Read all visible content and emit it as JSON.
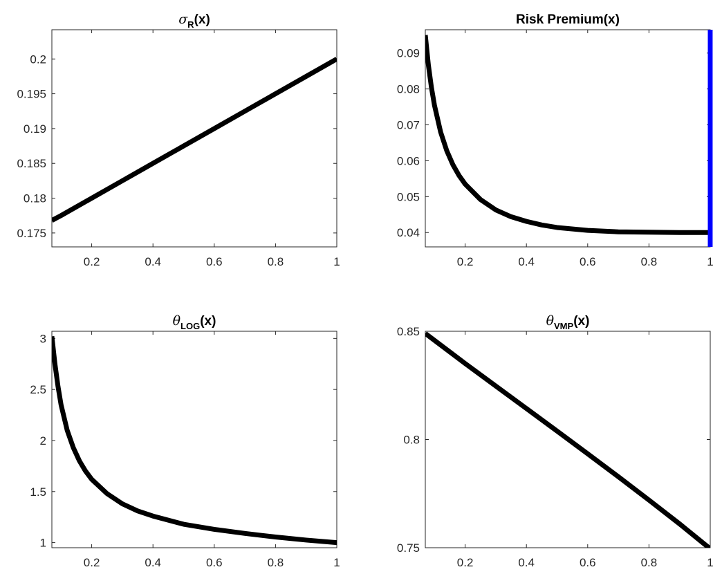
{
  "chart_data": [
    {
      "type": "line",
      "title": {
        "symbol": "σ",
        "subscript": "R",
        "suffix": "(x)"
      },
      "xlim": [
        0.07,
        1.0
      ],
      "ylim": [
        0.173,
        0.2042
      ],
      "xticks": [
        0.2,
        0.4,
        0.6,
        0.8,
        1.0
      ],
      "xtick_labels": [
        "0.2",
        "0.4",
        "0.6",
        "0.8",
        "1"
      ],
      "yticks": [
        0.175,
        0.18,
        0.185,
        0.19,
        0.195,
        0.2
      ],
      "ytick_labels": [
        "0.175",
        "0.18",
        "0.185",
        "0.19",
        "0.195",
        "0.2"
      ],
      "grid": false,
      "series": [
        {
          "color": "#000000",
          "x": [
            0.07,
            0.1,
            0.2,
            0.3,
            0.4,
            0.5,
            0.6,
            0.7,
            0.8,
            0.9,
            1.0
          ],
          "y": [
            0.1768,
            0.1775,
            0.18,
            0.1825,
            0.185,
            0.1875,
            0.19,
            0.1925,
            0.195,
            0.1975,
            0.2
          ]
        }
      ]
    },
    {
      "type": "line",
      "title": {
        "text": "Risk Premium(x)"
      },
      "xlim": [
        0.07,
        1.0
      ],
      "ylim": [
        0.036,
        0.0965
      ],
      "xticks": [
        0.2,
        0.4,
        0.6,
        0.8,
        1.0
      ],
      "xtick_labels": [
        "0.2",
        "0.4",
        "0.6",
        "0.8",
        "1"
      ],
      "yticks": [
        0.04,
        0.05,
        0.06,
        0.07,
        0.08,
        0.09
      ],
      "ytick_labels": [
        "0.04",
        "0.05",
        "0.06",
        "0.07",
        "0.08",
        "0.09"
      ],
      "grid": false,
      "series": [
        {
          "color": "#000000",
          "x": [
            0.07,
            0.08,
            0.09,
            0.1,
            0.12,
            0.14,
            0.16,
            0.18,
            0.2,
            0.25,
            0.3,
            0.35,
            0.4,
            0.45,
            0.5,
            0.6,
            0.7,
            0.8,
            0.9,
            1.0
          ],
          "y": [
            0.095,
            0.0867,
            0.0804,
            0.0754,
            0.068,
            0.0628,
            0.0589,
            0.0559,
            0.0535,
            0.0492,
            0.0463,
            0.0444,
            0.0431,
            0.0421,
            0.0414,
            0.0406,
            0.0402,
            0.0401,
            0.04,
            0.04
          ]
        },
        {
          "color": "#0000ff",
          "x": [
            1.0,
            1.0
          ],
          "y": [
            0.036,
            0.0965
          ]
        }
      ]
    },
    {
      "type": "line",
      "title": {
        "symbol": "θ",
        "subscript": "LOG",
        "suffix": "(x)"
      },
      "xlim": [
        0.07,
        1.0
      ],
      "ylim": [
        0.95,
        3.07
      ],
      "xticks": [
        0.2,
        0.4,
        0.6,
        0.8,
        1.0
      ],
      "xtick_labels": [
        "0.2",
        "0.4",
        "0.6",
        "0.8",
        "1"
      ],
      "yticks": [
        1,
        1.5,
        2,
        2.5,
        3
      ],
      "ytick_labels": [
        "1",
        "1.5",
        "2",
        "2.5",
        "3"
      ],
      "grid": false,
      "series": [
        {
          "color": "#000000",
          "x": [
            0.07,
            0.08,
            0.09,
            0.1,
            0.12,
            0.14,
            0.16,
            0.18,
            0.2,
            0.25,
            0.3,
            0.35,
            0.4,
            0.5,
            0.6,
            0.7,
            0.8,
            0.9,
            1.0
          ],
          "y": [
            3.02,
            2.75,
            2.53,
            2.35,
            2.1,
            1.93,
            1.8,
            1.7,
            1.62,
            1.48,
            1.38,
            1.31,
            1.26,
            1.18,
            1.13,
            1.09,
            1.055,
            1.025,
            1.0
          ]
        }
      ]
    },
    {
      "type": "line",
      "title": {
        "symbol": "θ",
        "subscript": "VMP",
        "suffix": "(x)"
      },
      "xlim": [
        0.07,
        1.0
      ],
      "ylim": [
        0.75,
        0.85
      ],
      "xticks": [
        0.2,
        0.4,
        0.6,
        0.8,
        1.0
      ],
      "xtick_labels": [
        "0.2",
        "0.4",
        "0.6",
        "0.8",
        "1"
      ],
      "yticks": [
        0.75,
        0.8,
        0.85
      ],
      "ytick_labels": [
        "0.75",
        "0.8",
        "0.85"
      ],
      "grid": false,
      "series": [
        {
          "color": "#000000",
          "x": [
            0.07,
            0.1,
            0.2,
            0.3,
            0.4,
            0.5,
            0.6,
            0.7,
            0.8,
            0.9,
            1.0
          ],
          "y": [
            0.849,
            0.8458,
            0.8351,
            0.8247,
            0.8143,
            0.8039,
            0.7934,
            0.7828,
            0.772,
            0.761,
            0.7495
          ]
        }
      ]
    }
  ]
}
